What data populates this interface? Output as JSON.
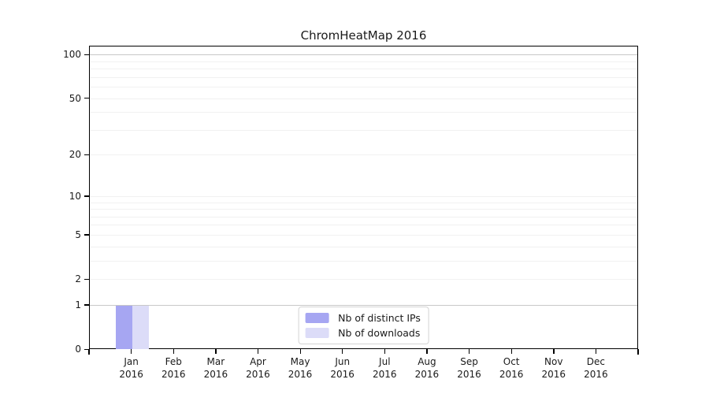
{
  "chart_data": {
    "type": "bar",
    "title": "ChromHeatMap 2016",
    "categories": [
      "Jan",
      "Feb",
      "Mar",
      "Apr",
      "May",
      "Jun",
      "Jul",
      "Aug",
      "Sep",
      "Oct",
      "Nov",
      "Dec"
    ],
    "category_year": "2016",
    "series": [
      {
        "name": "Nb of distinct IPs",
        "color": "#a6a6f2",
        "values": [
          1,
          0,
          0,
          0,
          0,
          0,
          0,
          0,
          0,
          0,
          0,
          0
        ]
      },
      {
        "name": "Nb of downloads",
        "color": "#dcdcf8",
        "values": [
          1,
          0,
          0,
          0,
          0,
          0,
          0,
          0,
          0,
          0,
          0,
          0
        ]
      }
    ],
    "y_axis": {
      "scale": "log1p",
      "ticks": [
        0,
        1,
        2,
        5,
        10,
        20,
        50,
        100
      ],
      "max_value": 115,
      "major_gridlines": [
        1,
        100
      ],
      "minor_gridlines": [
        2,
        3,
        4,
        5,
        6,
        7,
        8,
        9,
        10,
        20,
        30,
        40,
        50,
        60,
        70,
        80,
        90
      ]
    },
    "x_axis": {
      "tick_count": 12,
      "edge_ticks": true
    },
    "legend": {
      "position": "bottom-center-inside"
    },
    "colors": {
      "axis": "#000000",
      "major_grid": "#c8c8c8",
      "minor_grid": "#f1f1f1",
      "text": "#1a1a1a"
    }
  }
}
